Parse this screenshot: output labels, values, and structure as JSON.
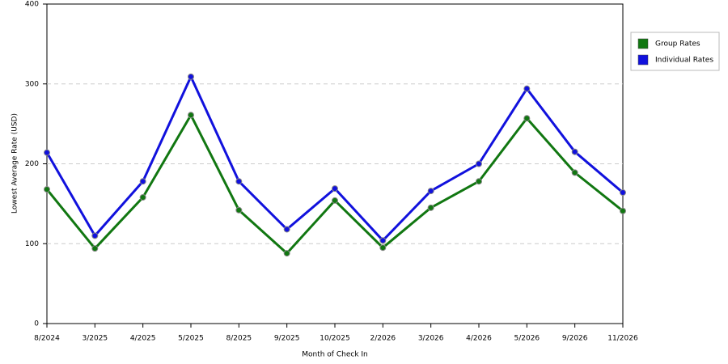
{
  "chart_data": {
    "type": "line",
    "y_label": "Lowest Average Rate (USD)",
    "x_label": "Month of Check In",
    "categories": [
      "8/2024",
      "3/2025",
      "4/2025",
      "5/2025",
      "8/2025",
      "9/2025",
      "10/2025",
      "2/2026",
      "3/2026",
      "4/2026",
      "5/2026",
      "9/2026",
      "11/2026"
    ],
    "series": [
      {
        "name": "Group Rates",
        "color": "#117711",
        "values": [
          168,
          94,
          158,
          261,
          142,
          88,
          154,
          95,
          145,
          178,
          257,
          189,
          141
        ]
      },
      {
        "name": "Individual Rates",
        "color": "#1111dd",
        "values": [
          214,
          110,
          178,
          309,
          178,
          118,
          169,
          104,
          166,
          200,
          294,
          215,
          164
        ]
      }
    ],
    "ylim": [
      0,
      400
    ],
    "yticks": [
      0,
      100,
      200,
      300,
      400
    ],
    "grid": true
  }
}
